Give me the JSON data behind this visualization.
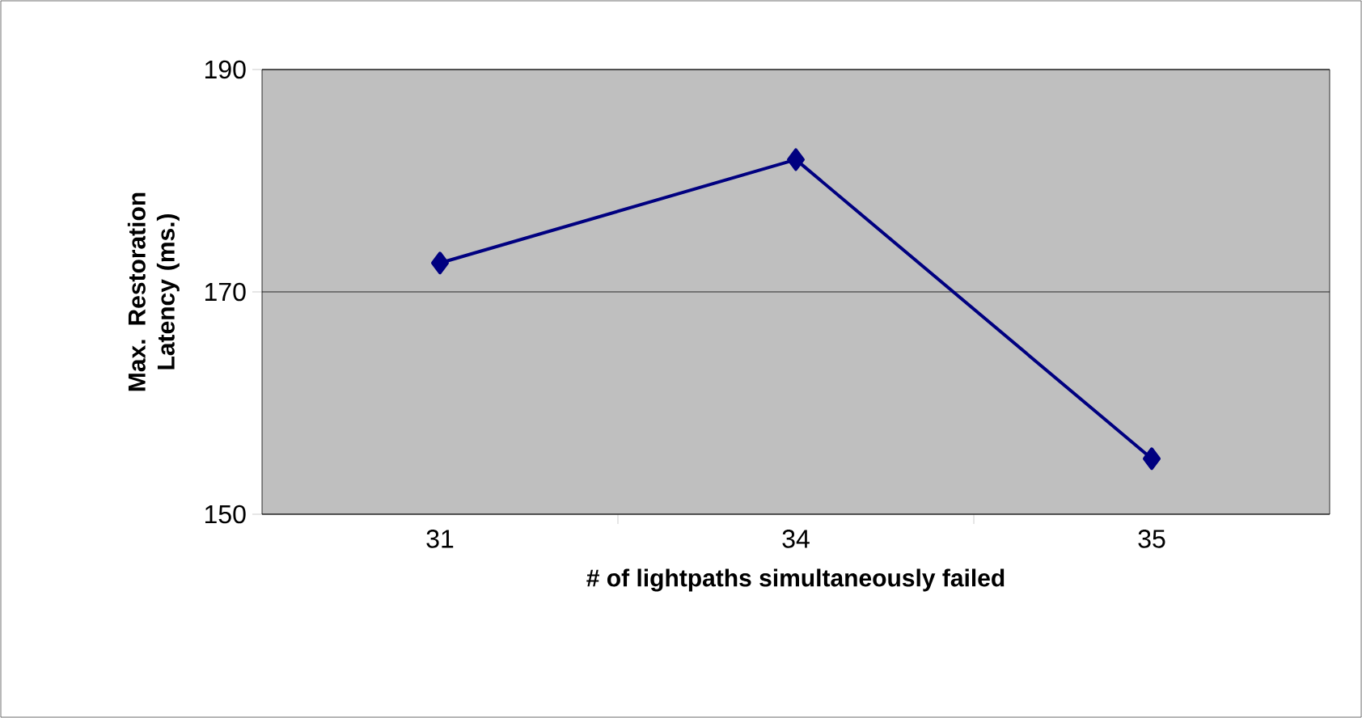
{
  "chart_data": {
    "type": "line",
    "xlabel": "# of lightpaths simultaneously failed",
    "ylabel": "Max. Restoration Latency (ms.)",
    "categories": [
      "31",
      "34",
      "35"
    ],
    "values": [
      172.6,
      181.9,
      155
    ],
    "color": "#000080",
    "marker": "diamond",
    "line_style": "solid",
    "ylim": [
      150,
      190
    ],
    "yticks": [
      150,
      170,
      190
    ],
    "grid": "y"
  }
}
